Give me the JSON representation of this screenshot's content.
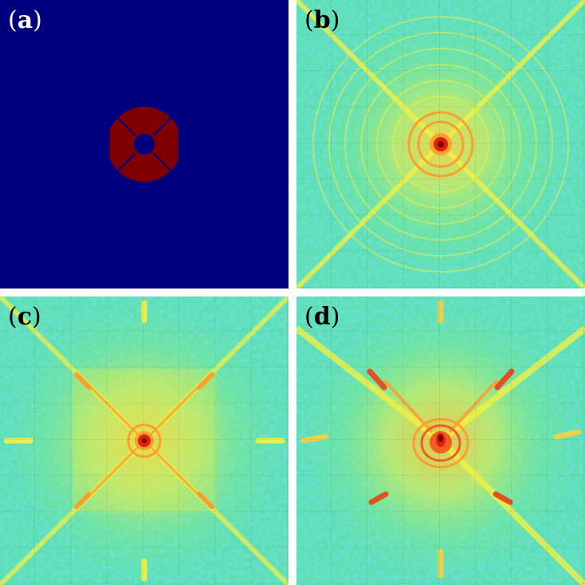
{
  "panels": [
    {
      "id": "a",
      "label": "a",
      "kind": "aperture"
    },
    {
      "id": "b",
      "label": "b",
      "kind": "diffraction-single"
    },
    {
      "id": "c",
      "label": "c",
      "kind": "diffraction-symmetric"
    },
    {
      "id": "d",
      "label": "d",
      "kind": "diffraction-asymmetric"
    }
  ],
  "colors": {
    "background_dark": "#00007f",
    "aperture_fill": "#7f0000",
    "noise_low": "#30b8e0",
    "noise_mid": "#5ce0b0",
    "field_green": "#9cf060",
    "ring_yellow": "#f8f040",
    "ring_orange": "#f8a030",
    "peak_red": "#e02010",
    "core_dark_red": "#800000"
  }
}
